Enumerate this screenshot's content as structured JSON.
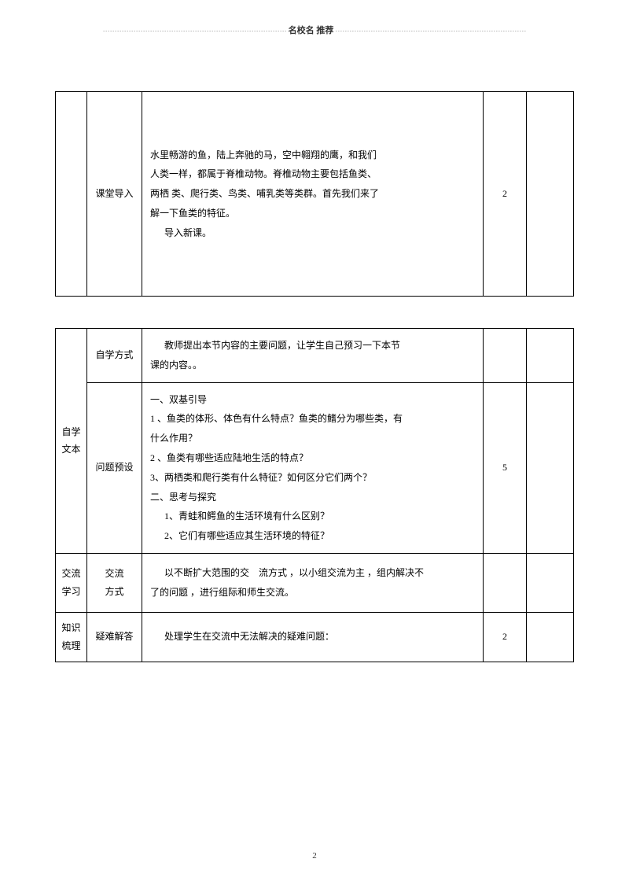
{
  "header": {
    "dots_left": "⋯⋯⋯⋯⋯⋯⋯⋯⋯⋯⋯⋯⋯⋯⋯⋯⋯⋯⋯⋯⋯⋯⋯⋯⋯⋯",
    "label": "名校名 推荐",
    "dots_right": "⋯⋯⋯⋯⋯⋯⋯⋯⋯⋯⋯⋯⋯⋯⋯⋯⋯⋯⋯⋯⋯⋯⋯⋯⋯⋯⋯"
  },
  "table1": {
    "row1": {
      "label": "课堂导入",
      "content_l1": "水里畅游的鱼，陆上奔驰的马，空中翱翔的鹰，和我们",
      "content_l2": "人类一样，都属于脊椎动物。脊椎动物主要包括鱼类、",
      "content_l3": "两栖 类、爬行类、鸟类、哺乳类等类群。首先我们来了",
      "content_l4": "解一下鱼类的特征。",
      "content_l5": "导入新课。",
      "time": "2"
    }
  },
  "table2": {
    "group1": {
      "label": "自学\n文本"
    },
    "row1": {
      "label": "自学方式",
      "content_l1": "教师提出本节内容的主要问题，让学生自己预习一下本节",
      "content_l2": "课的内容。。"
    },
    "row2": {
      "label": "问题预设",
      "h1": "一、双基引导",
      "q1a": "1 、鱼类的体形、体色有什么特点？鱼类的鳍分为哪些类，有",
      "q1b": "什么作用？",
      "q2": "2 、鱼类有哪些适应陆地生活的特点？",
      "q3": "3、两栖类和爬行类有什么特征？如何区分它们两个？",
      "h2": "二、思考与探究",
      "q4": "1、青蛙和鳄鱼的生活环境有什么区别？",
      "q5": "2、它们有哪些适应其生活环境的特征？",
      "time": "5"
    },
    "group3": {
      "label": "交流\n学习"
    },
    "row3": {
      "label": "交流\n方式",
      "content_l1": "以不断扩大范围的交　流方式 ，以小组交流为主 ，组内解决不",
      "content_l2": "了的问题 ，进行组际和师生交流。"
    },
    "group4": {
      "label": "知识\n梳理"
    },
    "row4": {
      "label": "疑难解答",
      "content": "处理学生在交流中无法解决的疑难问题：",
      "time": "2"
    }
  },
  "page_number": "2"
}
